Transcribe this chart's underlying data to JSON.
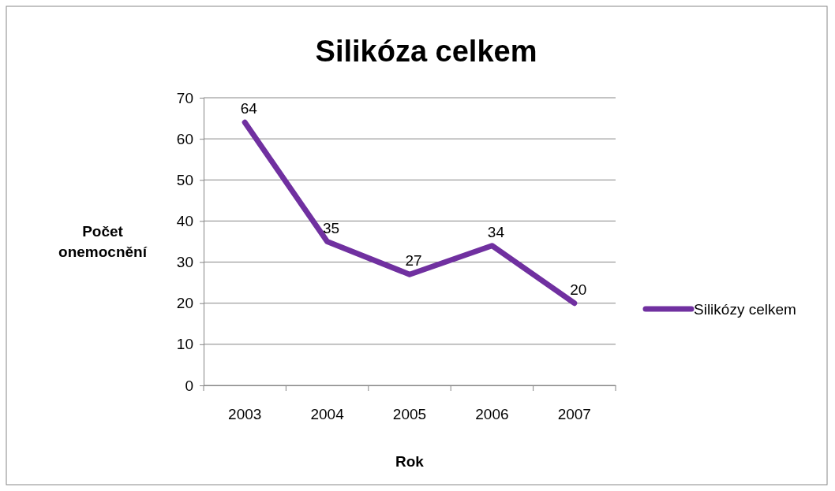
{
  "chart_data": {
    "type": "line",
    "title": "Silikóza celkem",
    "xlabel": "Rok",
    "ylabel": "Počet onemocnění",
    "categories": [
      "2003",
      "2004",
      "2005",
      "2006",
      "2007"
    ],
    "series": [
      {
        "name": "Silikózy celkem",
        "color": "#7030a0",
        "values": [
          64,
          35,
          27,
          34,
          20
        ]
      }
    ],
    "ylim": [
      0,
      70
    ],
    "yticks": [
      0,
      10,
      20,
      30,
      40,
      50,
      60,
      70
    ],
    "grid": "y",
    "legend": "right",
    "data_labels": true,
    "marker": "none",
    "line_style": "solid"
  }
}
